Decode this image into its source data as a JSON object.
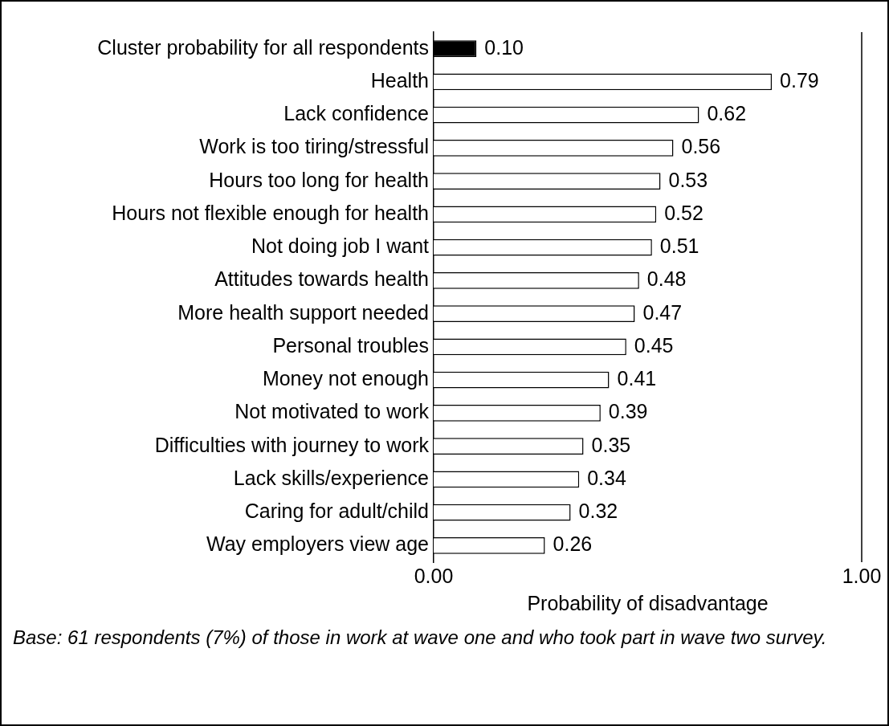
{
  "chart_data": {
    "type": "bar",
    "orientation": "horizontal",
    "xlabel": "Probability of disadvantage",
    "categories": [
      "Cluster probability for all respondents",
      "Health",
      "Lack confidence",
      "Work is too tiring/stressful",
      "Hours too long for health",
      "Hours not flexible enough for health",
      "Not doing job I want",
      "Attitudes towards health",
      "More health support needed",
      "Personal troubles",
      "Money not enough",
      "Not motivated to work",
      "Difficulties with journey to work",
      "Lack skills/experience",
      "Caring for adult/child",
      "Way employers view age"
    ],
    "values": [
      0.1,
      0.79,
      0.62,
      0.56,
      0.53,
      0.52,
      0.51,
      0.48,
      0.47,
      0.45,
      0.41,
      0.39,
      0.35,
      0.34,
      0.32,
      0.26
    ],
    "value_labels": [
      "0.10",
      "0.79",
      "0.62",
      "0.56",
      "0.53",
      "0.52",
      "0.51",
      "0.48",
      "0.47",
      "0.45",
      "0.41",
      "0.39",
      "0.35",
      "0.34",
      "0.32",
      "0.26"
    ],
    "colors": [
      "#000000",
      "#ffffff",
      "#ffffff",
      "#ffffff",
      "#ffffff",
      "#ffffff",
      "#ffffff",
      "#ffffff",
      "#ffffff",
      "#ffffff",
      "#ffffff",
      "#ffffff",
      "#ffffff",
      "#ffffff",
      "#ffffff",
      "#ffffff"
    ],
    "xlim": [
      0,
      1
    ],
    "xticks": [
      {
        "value": 0,
        "label": "0.00"
      },
      {
        "value": 1,
        "label": "1.00"
      }
    ],
    "grid": false,
    "legend": false,
    "annotations": [
      "Base: 61 respondents (7%) of those in work at wave one and who took part in wave two survey."
    ]
  }
}
